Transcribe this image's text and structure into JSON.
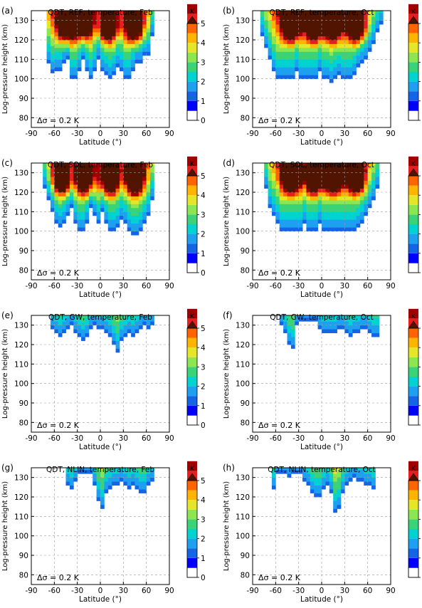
{
  "figure": {
    "background": "#ffffff"
  },
  "colorbar": {
    "unit": "K",
    "ticks": [
      0,
      1,
      2,
      3,
      4,
      5
    ],
    "colors": [
      "#ffffff",
      "#0000ff",
      "#1464e6",
      "#1ea0f0",
      "#00d2d2",
      "#3cd278",
      "#8ce650",
      "#e6e628",
      "#ffb400",
      "#ff6400",
      "#e61e1e",
      "#a00000",
      "#501400"
    ]
  },
  "annotation": "Δσ = 0.2 K",
  "chart_data": [
    {
      "type": "heatmap",
      "panel_label": "(a)",
      "title": "QDT, REF, temperature, Feb",
      "xlabel": "Latitude (°)",
      "ylabel": "Log-pressure height (km)",
      "xlim": [
        -90,
        90
      ],
      "ylim": [
        75,
        135
      ],
      "xticks": [
        -90,
        -60,
        -30,
        0,
        30,
        60,
        90
      ],
      "yticks": [
        80,
        90,
        100,
        110,
        120,
        130
      ],
      "grid": true,
      "lat_edges": [
        -70,
        -65,
        -60,
        -55,
        -50,
        -45,
        -40,
        -35,
        -30,
        -25,
        -20,
        -15,
        -10,
        -5,
        0,
        5,
        10,
        15,
        20,
        25,
        30,
        35,
        40,
        45,
        50,
        55,
        60,
        65,
        70
      ],
      "bottom_km": [
        108,
        103,
        104,
        104,
        108,
        110,
        100,
        100,
        104,
        110,
        104,
        100,
        104,
        110,
        104,
        102,
        100,
        102,
        106,
        104,
        100,
        100,
        104,
        108,
        108,
        112,
        112,
        122
      ],
      "peaks": [
        {
          "lat": -45,
          "h": 128,
          "amp": 7
        },
        {
          "lat": -22,
          "h": 128,
          "amp": 5
        },
        {
          "lat": 10,
          "h": 128,
          "amp": 6.5
        },
        {
          "lat": 45,
          "h": 128,
          "amp": 7
        }
      ]
    },
    {
      "type": "heatmap",
      "panel_label": "(b)",
      "title": "QDT, REF, temperature, Oct",
      "xlabel": "Latitude (°)",
      "ylabel": "Log-pressure height (km)",
      "xlim": [
        -90,
        90
      ],
      "ylim": [
        75,
        135
      ],
      "xticks": [
        -90,
        -60,
        -30,
        0,
        30,
        60,
        90
      ],
      "yticks": [
        80,
        90,
        100,
        110,
        120,
        130
      ],
      "grid": true,
      "lat_edges": [
        -80,
        -75,
        -70,
        -65,
        -60,
        -55,
        -50,
        -45,
        -40,
        -35,
        -30,
        -25,
        -20,
        -15,
        -10,
        -5,
        0,
        5,
        10,
        15,
        20,
        25,
        30,
        35,
        40,
        45,
        50,
        55,
        60,
        65,
        70,
        75,
        80
      ],
      "bottom_km": [
        122,
        116,
        110,
        104,
        100,
        100,
        100,
        100,
        100,
        104,
        100,
        100,
        100,
        100,
        100,
        104,
        100,
        100,
        98,
        100,
        102,
        100,
        100,
        100,
        102,
        106,
        108,
        110,
        114,
        118,
        124,
        128
      ],
      "peaks": [
        {
          "lat": -40,
          "h": 128,
          "amp": 7
        },
        {
          "lat": -10,
          "h": 128,
          "amp": 6
        },
        {
          "lat": 15,
          "h": 128,
          "amp": 6
        },
        {
          "lat": 45,
          "h": 128,
          "amp": 7
        }
      ]
    },
    {
      "type": "heatmap",
      "panel_label": "(c)",
      "title": "QDT, SOL, temperature, Feb",
      "xlabel": "Latitude (°)",
      "ylabel": "Log-pressure height (km)",
      "xlim": [
        -90,
        90
      ],
      "ylim": [
        75,
        135
      ],
      "xticks": [
        -90,
        -60,
        -30,
        0,
        30,
        60,
        90
      ],
      "yticks": [
        80,
        90,
        100,
        110,
        120,
        130
      ],
      "grid": true,
      "lat_edges": [
        -75,
        -70,
        -65,
        -60,
        -55,
        -50,
        -45,
        -40,
        -35,
        -30,
        -25,
        -20,
        -15,
        -10,
        -5,
        0,
        5,
        10,
        15,
        20,
        25,
        30,
        35,
        40,
        45,
        50,
        55,
        60,
        65,
        70
      ],
      "bottom_km": [
        122,
        116,
        110,
        104,
        102,
        104,
        108,
        112,
        104,
        100,
        100,
        104,
        112,
        108,
        104,
        110,
        104,
        100,
        100,
        102,
        106,
        104,
        100,
        98,
        98,
        100,
        104,
        108,
        116
      ],
      "peaks": [
        {
          "lat": -50,
          "h": 128,
          "amp": 6.5
        },
        {
          "lat": -20,
          "h": 128,
          "amp": 6
        },
        {
          "lat": 12,
          "h": 128,
          "amp": 7
        },
        {
          "lat": 45,
          "h": 128,
          "amp": 7
        }
      ]
    },
    {
      "type": "heatmap",
      "panel_label": "(d)",
      "title": "QDT, SOL, temperature, Oct",
      "xlabel": "Latitude (°)",
      "ylabel": "Log-pressure height (km)",
      "xlim": [
        -90,
        90
      ],
      "ylim": [
        75,
        135
      ],
      "xticks": [
        -90,
        -60,
        -30,
        0,
        30,
        60,
        90
      ],
      "yticks": [
        80,
        90,
        100,
        110,
        120,
        130
      ],
      "grid": true,
      "lat_edges": [
        -75,
        -70,
        -65,
        -60,
        -55,
        -50,
        -45,
        -40,
        -35,
        -30,
        -25,
        -20,
        -15,
        -10,
        -5,
        0,
        5,
        10,
        15,
        20,
        25,
        30,
        35,
        40,
        45,
        50,
        55,
        60,
        65,
        70,
        75
      ],
      "bottom_km": [
        122,
        112,
        108,
        104,
        100,
        100,
        100,
        100,
        100,
        100,
        104,
        100,
        100,
        100,
        104,
        100,
        100,
        100,
        100,
        100,
        100,
        100,
        100,
        100,
        102,
        104,
        108,
        112,
        116,
        122
      ],
      "peaks": [
        {
          "lat": -40,
          "h": 128,
          "amp": 7
        },
        {
          "lat": -10,
          "h": 128,
          "amp": 6
        },
        {
          "lat": 15,
          "h": 128,
          "amp": 6.5
        },
        {
          "lat": 45,
          "h": 128,
          "amp": 6.5
        }
      ]
    },
    {
      "type": "heatmap",
      "panel_label": "(e)",
      "title": "QDT, GW, temperature, Feb",
      "xlabel": "Latitude (°)",
      "ylabel": "Log-pressure height (km)",
      "xlim": [
        -90,
        90
      ],
      "ylim": [
        75,
        135
      ],
      "xticks": [
        -90,
        -60,
        -30,
        0,
        30,
        60,
        90
      ],
      "yticks": [
        80,
        90,
        100,
        110,
        120,
        130
      ],
      "grid": true,
      "lat_edges": [
        -65,
        -60,
        -55,
        -50,
        -45,
        -40,
        -35,
        -30,
        -25,
        -20,
        -15,
        -10,
        -5,
        0,
        5,
        10,
        15,
        20,
        25,
        30,
        35,
        40,
        45,
        50,
        55,
        60,
        65,
        70
      ],
      "bottom_km": [
        128,
        126,
        124,
        126,
        128,
        130,
        126,
        124,
        122,
        124,
        128,
        130,
        128,
        128,
        126,
        124,
        120,
        116,
        122,
        124,
        126,
        124,
        126,
        128,
        130,
        128,
        130
      ],
      "peaks": []
    },
    {
      "type": "heatmap",
      "panel_label": "(f)",
      "title": "QDT, GW, temperature, Oct",
      "xlabel": "Latitude (°)",
      "ylabel": "Log-pressure height (km)",
      "xlim": [
        -90,
        90
      ],
      "ylim": [
        75,
        135
      ],
      "xticks": [
        -90,
        -60,
        -30,
        0,
        30,
        60,
        90
      ],
      "yticks": [
        80,
        90,
        100,
        110,
        120,
        130
      ],
      "grid": true,
      "lat_edges": [
        -55,
        -50,
        -45,
        -40,
        -35,
        -30,
        -25,
        -20,
        -15,
        -10,
        -5,
        0,
        5,
        10,
        15,
        20,
        25,
        30,
        35,
        40,
        45,
        50,
        55,
        60,
        65,
        70,
        75
      ],
      "bottom_km": [
        130,
        126,
        120,
        118,
        130,
        132,
        132,
        132,
        132,
        132,
        128,
        126,
        126,
        126,
        126,
        128,
        128,
        126,
        124,
        126,
        126,
        128,
        128,
        126,
        124,
        124
      ],
      "peaks": []
    },
    {
      "type": "heatmap",
      "panel_label": "(g)",
      "title": "QDT, NLIN, temperature, Feb",
      "xlabel": "Latitude (°)",
      "ylabel": "Log-pressure height (km)",
      "xlim": [
        -90,
        90
      ],
      "ylim": [
        75,
        135
      ],
      "xticks": [
        -90,
        -60,
        -30,
        0,
        30,
        60,
        90
      ],
      "yticks": [
        80,
        90,
        100,
        110,
        120,
        130
      ],
      "grid": true,
      "lat_edges": [
        -45,
        -40,
        -35,
        -30,
        -25,
        -20,
        -15,
        -10,
        -5,
        0,
        5,
        10,
        15,
        20,
        25,
        30,
        35,
        40,
        45,
        50,
        55,
        60,
        65,
        70
      ],
      "bottom_km": [
        126,
        124,
        128,
        132,
        132,
        132,
        132,
        126,
        118,
        114,
        122,
        124,
        126,
        126,
        128,
        126,
        124,
        126,
        124,
        122,
        122,
        126,
        128
      ],
      "peaks": []
    },
    {
      "type": "heatmap",
      "panel_label": "(h)",
      "title": "QDT, NLIN, temperature, Oct",
      "xlabel": "Latitude (°)",
      "ylabel": "Log-pressure height (km)",
      "xlim": [
        -90,
        90
      ],
      "ylim": [
        75,
        135
      ],
      "xticks": [
        -90,
        -60,
        -30,
        0,
        30,
        60,
        90
      ],
      "yticks": [
        80,
        90,
        100,
        110,
        120,
        130
      ],
      "grid": true,
      "lat_edges": [
        -65,
        -60,
        -55,
        -50,
        -45,
        -40,
        -35,
        -30,
        -25,
        -20,
        -15,
        -10,
        -5,
        0,
        5,
        10,
        15,
        20,
        25,
        30,
        35,
        40,
        45,
        50,
        55,
        60,
        65,
        70
      ],
      "bottom_km": [
        124,
        132,
        132,
        132,
        130,
        132,
        132,
        132,
        128,
        126,
        122,
        120,
        120,
        124,
        126,
        122,
        112,
        114,
        122,
        126,
        128,
        130,
        128,
        128,
        126,
        126,
        124
      ],
      "peaks": []
    }
  ]
}
